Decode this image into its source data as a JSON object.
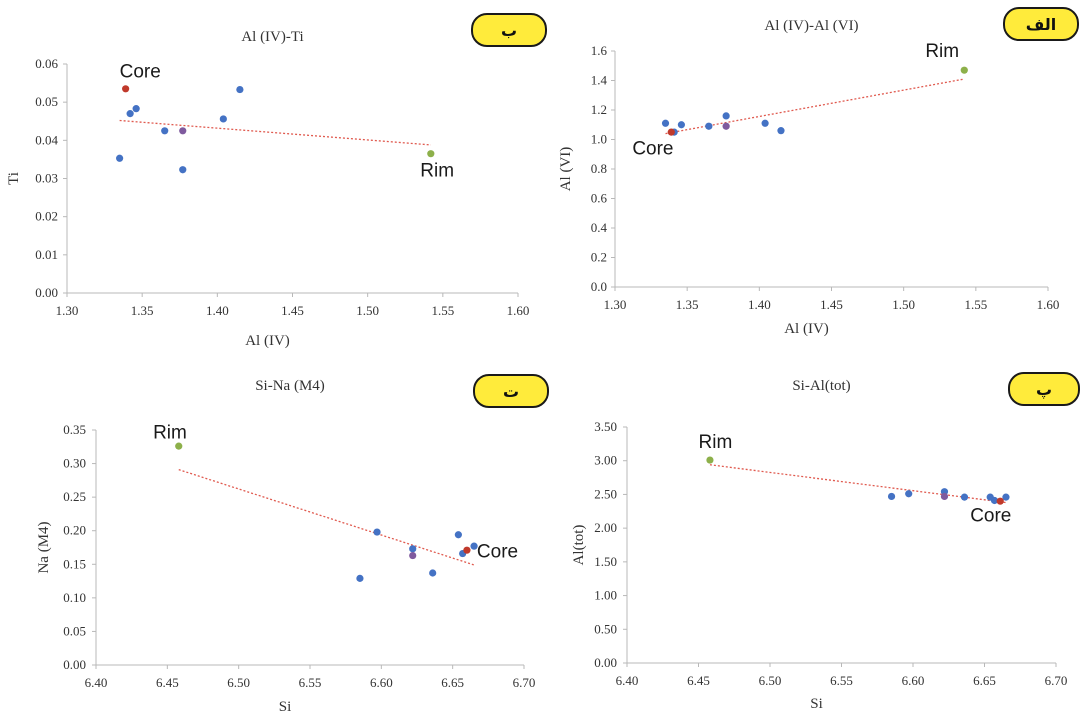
{
  "chart_data": [
    {
      "id": "p1",
      "type": "scatter",
      "title": "Al (IV)-Ti",
      "xlabel": "Al (IV)",
      "ylabel": "Ti",
      "badge": "ب",
      "xlim": [
        1.3,
        1.6
      ],
      "ylim": [
        0.0,
        0.06
      ],
      "xticks": [
        "1.30",
        "1.35",
        "1.40",
        "1.45",
        "1.50",
        "1.55",
        "1.60"
      ],
      "yticks": [
        "0.00",
        "0.01",
        "0.02",
        "0.03",
        "0.04",
        "0.05",
        "0.06"
      ],
      "grid": false,
      "points": [
        {
          "x": 1.335,
          "y": 0.0353,
          "c": "blue"
        },
        {
          "x": 1.342,
          "y": 0.047,
          "c": "blue"
        },
        {
          "x": 1.346,
          "y": 0.0483,
          "c": "blue"
        },
        {
          "x": 1.365,
          "y": 0.0425,
          "c": "blue"
        },
        {
          "x": 1.377,
          "y": 0.0425,
          "c": "purple"
        },
        {
          "x": 1.377,
          "y": 0.0323,
          "c": "blue"
        },
        {
          "x": 1.404,
          "y": 0.0456,
          "c": "blue"
        },
        {
          "x": 1.415,
          "y": 0.0533,
          "c": "blue"
        },
        {
          "x": 1.339,
          "y": 0.0535,
          "c": "red"
        },
        {
          "x": 1.542,
          "y": 0.0365,
          "c": "green"
        }
      ],
      "trend": {
        "x": [
          1.335,
          1.542
        ],
        "y": [
          0.0452,
          0.0388
        ]
      },
      "annotations": [
        {
          "text": "Core",
          "x": 1.335,
          "y": 0.0565
        },
        {
          "text": "Rim",
          "x": 1.535,
          "y": 0.0305
        }
      ]
    },
    {
      "id": "p2",
      "type": "scatter",
      "title": "Al (IV)-Al (VI)",
      "xlabel": "Al (IV)",
      "ylabel": "Al (VI)",
      "badge": "الف",
      "xlim": [
        1.3,
        1.6
      ],
      "ylim": [
        0.0,
        1.6
      ],
      "xticks": [
        "1.30",
        "1.35",
        "1.40",
        "1.45",
        "1.50",
        "1.55",
        "1.60"
      ],
      "yticks": [
        "0.0",
        "0.2",
        "0.4",
        "0.6",
        "0.8",
        "1.0",
        "1.2",
        "1.4",
        "1.6"
      ],
      "grid": false,
      "points": [
        {
          "x": 1.335,
          "y": 1.11,
          "c": "blue"
        },
        {
          "x": 1.341,
          "y": 1.05,
          "c": "blue"
        },
        {
          "x": 1.346,
          "y": 1.1,
          "c": "blue"
        },
        {
          "x": 1.365,
          "y": 1.09,
          "c": "blue"
        },
        {
          "x": 1.377,
          "y": 1.16,
          "c": "blue"
        },
        {
          "x": 1.377,
          "y": 1.09,
          "c": "purple"
        },
        {
          "x": 1.404,
          "y": 1.11,
          "c": "blue"
        },
        {
          "x": 1.415,
          "y": 1.06,
          "c": "blue"
        },
        {
          "x": 1.339,
          "y": 1.05,
          "c": "red"
        },
        {
          "x": 1.542,
          "y": 1.47,
          "c": "green"
        }
      ],
      "trend": {
        "x": [
          1.335,
          1.542
        ],
        "y": [
          1.04,
          1.41
        ]
      },
      "annotations": [
        {
          "text": "Core",
          "x": 1.312,
          "y": 0.9
        },
        {
          "text": "Rim",
          "x": 1.515,
          "y": 1.56
        }
      ]
    },
    {
      "id": "p3",
      "type": "scatter",
      "title": "Si-Na (M4)",
      "xlabel": "Si",
      "ylabel": "Na (M4)",
      "badge": "ت",
      "xlim": [
        6.4,
        6.7
      ],
      "ylim": [
        0.0,
        0.35
      ],
      "xticks": [
        "6.40",
        "6.45",
        "6.50",
        "6.55",
        "6.60",
        "6.65",
        "6.70"
      ],
      "yticks": [
        "0.00",
        "0.05",
        "0.10",
        "0.15",
        "0.20",
        "0.25",
        "0.30",
        "0.35"
      ],
      "grid": false,
      "points": [
        {
          "x": 6.585,
          "y": 0.129,
          "c": "blue"
        },
        {
          "x": 6.597,
          "y": 0.198,
          "c": "blue"
        },
        {
          "x": 6.622,
          "y": 0.173,
          "c": "blue"
        },
        {
          "x": 6.622,
          "y": 0.163,
          "c": "purple"
        },
        {
          "x": 6.636,
          "y": 0.137,
          "c": "blue"
        },
        {
          "x": 6.654,
          "y": 0.194,
          "c": "blue"
        },
        {
          "x": 6.657,
          "y": 0.166,
          "c": "blue"
        },
        {
          "x": 6.665,
          "y": 0.177,
          "c": "blue"
        },
        {
          "x": 6.66,
          "y": 0.171,
          "c": "red"
        },
        {
          "x": 6.458,
          "y": 0.326,
          "c": "green"
        }
      ],
      "trend": {
        "x": [
          6.458,
          6.665
        ],
        "y": [
          0.291,
          0.149
        ]
      },
      "annotations": [
        {
          "text": "Core",
          "x": 6.667,
          "y": 0.16
        },
        {
          "text": "Rim",
          "x": 6.44,
          "y": 0.337
        }
      ]
    },
    {
      "id": "p4",
      "type": "scatter",
      "title": "Si-Al(tot)",
      "xlabel": "Si",
      "ylabel": "Al(tot)",
      "badge": "پ",
      "xlim": [
        6.4,
        6.7
      ],
      "ylim": [
        0.0,
        3.5
      ],
      "xticks": [
        "6.40",
        "6.45",
        "6.50",
        "6.55",
        "6.60",
        "6.65",
        "6.70"
      ],
      "yticks": [
        "0.00",
        "0.50",
        "1.00",
        "1.50",
        "2.00",
        "2.50",
        "3.00",
        "3.50"
      ],
      "grid": false,
      "points": [
        {
          "x": 6.585,
          "y": 2.47,
          "c": "blue"
        },
        {
          "x": 6.597,
          "y": 2.51,
          "c": "blue"
        },
        {
          "x": 6.622,
          "y": 2.54,
          "c": "blue"
        },
        {
          "x": 6.622,
          "y": 2.47,
          "c": "purple"
        },
        {
          "x": 6.636,
          "y": 2.46,
          "c": "blue"
        },
        {
          "x": 6.654,
          "y": 2.46,
          "c": "blue"
        },
        {
          "x": 6.657,
          "y": 2.41,
          "c": "blue"
        },
        {
          "x": 6.665,
          "y": 2.46,
          "c": "blue"
        },
        {
          "x": 6.661,
          "y": 2.4,
          "c": "red"
        },
        {
          "x": 6.458,
          "y": 3.01,
          "c": "green"
        }
      ],
      "trend": {
        "x": [
          6.458,
          6.665
        ],
        "y": [
          2.94,
          2.38
        ]
      },
      "annotations": [
        {
          "text": "Core",
          "x": 6.64,
          "y": 2.1
        },
        {
          "text": "Rim",
          "x": 6.45,
          "y": 3.19
        }
      ]
    }
  ],
  "colors": {
    "blue": "#4472c4",
    "purple": "#7f5a9e",
    "red": "#c0392b",
    "green": "#8db04a",
    "trend": "#e05a4f",
    "axis": "#b8b8b8",
    "badge": "#ffeb3b"
  }
}
